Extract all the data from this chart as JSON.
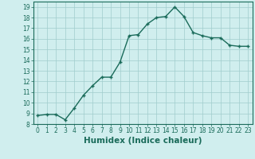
{
  "x": [
    0,
    1,
    2,
    3,
    4,
    5,
    6,
    7,
    8,
    9,
    10,
    11,
    12,
    13,
    14,
    15,
    16,
    17,
    18,
    19,
    20,
    21,
    22,
    23
  ],
  "y": [
    8.8,
    8.9,
    8.9,
    8.4,
    9.5,
    10.7,
    11.6,
    12.4,
    12.4,
    13.8,
    16.3,
    16.4,
    17.4,
    18.0,
    18.1,
    19.0,
    18.1,
    16.6,
    16.3,
    16.1,
    16.1,
    15.4,
    15.3,
    15.3
  ],
  "line_color": "#1a6b5a",
  "marker_color": "#1a6b5a",
  "bg_color": "#d0eeee",
  "grid_color": "#a0cccc",
  "xlabel": "Humidex (Indice chaleur)",
  "ylim": [
    8,
    19.5
  ],
  "xlim": [
    -0.5,
    23.5
  ],
  "yticks": [
    8,
    9,
    10,
    11,
    12,
    13,
    14,
    15,
    16,
    17,
    18,
    19
  ],
  "xticks": [
    0,
    1,
    2,
    3,
    4,
    5,
    6,
    7,
    8,
    9,
    10,
    11,
    12,
    13,
    14,
    15,
    16,
    17,
    18,
    19,
    20,
    21,
    22,
    23
  ],
  "tick_label_color": "#1a6b5a",
  "tick_fontsize": 5.5,
  "xlabel_fontsize": 7.5,
  "xlabel_weight": "bold"
}
